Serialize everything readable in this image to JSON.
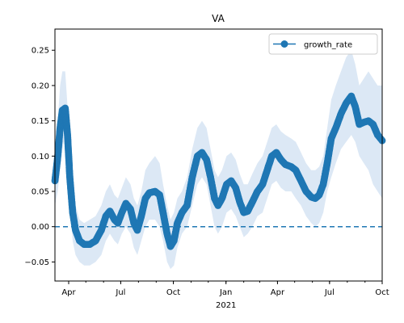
{
  "chart_data": {
    "type": "line",
    "title": "VA",
    "xlabel": "",
    "ylabel": "",
    "x_axis": {
      "type": "date",
      "range": [
        "2020-03-08",
        "2021-10-01"
      ],
      "ticks": [
        {
          "date": "2020-04-01",
          "label": "Apr"
        },
        {
          "date": "2020-07-01",
          "label": "Jul"
        },
        {
          "date": "2020-10-01",
          "label": "Oct"
        },
        {
          "date": "2021-01-01",
          "label": "Jan"
        },
        {
          "date": "2021-04-01",
          "label": "Apr"
        },
        {
          "date": "2021-07-01",
          "label": "Jul"
        },
        {
          "date": "2021-10-01",
          "label": "Oct"
        }
      ],
      "year_label": {
        "date": "2021-01-01",
        "label": "2021"
      }
    },
    "y_axis": {
      "range": [
        -0.077,
        0.28
      ],
      "ticks": [
        -0.05,
        0.0,
        0.05,
        0.1,
        0.15,
        0.2,
        0.25
      ],
      "tick_labels": [
        "−0.05",
        "0.00",
        "0.05",
        "0.10",
        "0.15",
        "0.20",
        "0.25"
      ]
    },
    "legend": {
      "placement": "top-right",
      "entries": [
        "growth_rate"
      ]
    },
    "reference_line": {
      "y": 0.0,
      "style": "dashed"
    },
    "series": [
      {
        "name": "growth_rate",
        "color": "#1f77b4",
        "band_color": "#dce8f5",
        "points": [
          {
            "x": "2020-03-08",
            "y": 0.065,
            "lo": 0.03,
            "hi": 0.1
          },
          {
            "x": "2020-03-13",
            "y": 0.1,
            "lo": 0.05,
            "hi": 0.15
          },
          {
            "x": "2020-03-17",
            "y": 0.14,
            "lo": 0.08,
            "hi": 0.2
          },
          {
            "x": "2020-03-21",
            "y": 0.165,
            "lo": 0.11,
            "hi": 0.22
          },
          {
            "x": "2020-03-26",
            "y": 0.168,
            "lo": 0.13,
            "hi": 0.22
          },
          {
            "x": "2020-03-30",
            "y": 0.13,
            "lo": 0.09,
            "hi": 0.17
          },
          {
            "x": "2020-04-03",
            "y": 0.07,
            "lo": 0.04,
            "hi": 0.11
          },
          {
            "x": "2020-04-08",
            "y": 0.02,
            "lo": -0.02,
            "hi": 0.06
          },
          {
            "x": "2020-04-13",
            "y": -0.005,
            "lo": -0.04,
            "hi": 0.03
          },
          {
            "x": "2020-04-20",
            "y": -0.02,
            "lo": -0.05,
            "hi": 0.01
          },
          {
            "x": "2020-04-28",
            "y": -0.025,
            "lo": -0.055,
            "hi": 0.005
          },
          {
            "x": "2020-05-08",
            "y": -0.025,
            "lo": -0.055,
            "hi": 0.01
          },
          {
            "x": "2020-05-18",
            "y": -0.02,
            "lo": -0.05,
            "hi": 0.015
          },
          {
            "x": "2020-05-28",
            "y": -0.005,
            "lo": -0.04,
            "hi": 0.03
          },
          {
            "x": "2020-06-05",
            "y": 0.015,
            "lo": -0.02,
            "hi": 0.05
          },
          {
            "x": "2020-06-12",
            "y": 0.022,
            "lo": -0.01,
            "hi": 0.06
          },
          {
            "x": "2020-06-20",
            "y": 0.01,
            "lo": -0.02,
            "hi": 0.045
          },
          {
            "x": "2020-06-26",
            "y": 0.005,
            "lo": -0.025,
            "hi": 0.04
          },
          {
            "x": "2020-07-03",
            "y": 0.02,
            "lo": -0.01,
            "hi": 0.055
          },
          {
            "x": "2020-07-10",
            "y": 0.033,
            "lo": 0.0,
            "hi": 0.07
          },
          {
            "x": "2020-07-18",
            "y": 0.025,
            "lo": -0.01,
            "hi": 0.06
          },
          {
            "x": "2020-07-24",
            "y": 0.005,
            "lo": -0.03,
            "hi": 0.04
          },
          {
            "x": "2020-07-30",
            "y": -0.005,
            "lo": -0.04,
            "hi": 0.03
          },
          {
            "x": "2020-08-06",
            "y": 0.015,
            "lo": -0.02,
            "hi": 0.05
          },
          {
            "x": "2020-08-13",
            "y": 0.04,
            "lo": 0.0,
            "hi": 0.08
          },
          {
            "x": "2020-08-20",
            "y": 0.048,
            "lo": 0.01,
            "hi": 0.09
          },
          {
            "x": "2020-08-30",
            "y": 0.05,
            "lo": 0.01,
            "hi": 0.1
          },
          {
            "x": "2020-09-07",
            "y": 0.045,
            "lo": 0.0,
            "hi": 0.09
          },
          {
            "x": "2020-09-13",
            "y": 0.02,
            "lo": -0.02,
            "hi": 0.06
          },
          {
            "x": "2020-09-20",
            "y": -0.01,
            "lo": -0.05,
            "hi": 0.03
          },
          {
            "x": "2020-09-26",
            "y": -0.028,
            "lo": -0.06,
            "hi": 0.01
          },
          {
            "x": "2020-10-02",
            "y": -0.02,
            "lo": -0.055,
            "hi": 0.02
          },
          {
            "x": "2020-10-08",
            "y": 0.005,
            "lo": -0.03,
            "hi": 0.04
          },
          {
            "x": "2020-10-16",
            "y": 0.02,
            "lo": -0.01,
            "hi": 0.05
          },
          {
            "x": "2020-10-25",
            "y": 0.03,
            "lo": 0.0,
            "hi": 0.07
          },
          {
            "x": "2020-11-03",
            "y": 0.07,
            "lo": 0.03,
            "hi": 0.11
          },
          {
            "x": "2020-11-12",
            "y": 0.1,
            "lo": 0.06,
            "hi": 0.14
          },
          {
            "x": "2020-11-20",
            "y": 0.105,
            "lo": 0.07,
            "hi": 0.15
          },
          {
            "x": "2020-11-28",
            "y": 0.095,
            "lo": 0.06,
            "hi": 0.14
          },
          {
            "x": "2020-12-05",
            "y": 0.07,
            "lo": 0.03,
            "hi": 0.11
          },
          {
            "x": "2020-12-12",
            "y": 0.04,
            "lo": 0.0,
            "hi": 0.08
          },
          {
            "x": "2020-12-18",
            "y": 0.03,
            "lo": -0.01,
            "hi": 0.07
          },
          {
            "x": "2020-12-25",
            "y": 0.04,
            "lo": 0.0,
            "hi": 0.08
          },
          {
            "x": "2021-01-02",
            "y": 0.06,
            "lo": 0.02,
            "hi": 0.1
          },
          {
            "x": "2021-01-10",
            "y": 0.065,
            "lo": 0.025,
            "hi": 0.105
          },
          {
            "x": "2021-01-18",
            "y": 0.055,
            "lo": 0.015,
            "hi": 0.095
          },
          {
            "x": "2021-01-25",
            "y": 0.035,
            "lo": 0.0,
            "hi": 0.075
          },
          {
            "x": "2021-02-01",
            "y": 0.02,
            "lo": -0.015,
            "hi": 0.06
          },
          {
            "x": "2021-02-08",
            "y": 0.022,
            "lo": -0.01,
            "hi": 0.06
          },
          {
            "x": "2021-02-16",
            "y": 0.035,
            "lo": 0.0,
            "hi": 0.075
          },
          {
            "x": "2021-02-25",
            "y": 0.05,
            "lo": 0.015,
            "hi": 0.09
          },
          {
            "x": "2021-03-06",
            "y": 0.06,
            "lo": 0.02,
            "hi": 0.1
          },
          {
            "x": "2021-03-14",
            "y": 0.08,
            "lo": 0.04,
            "hi": 0.12
          },
          {
            "x": "2021-03-22",
            "y": 0.1,
            "lo": 0.06,
            "hi": 0.14
          },
          {
            "x": "2021-03-30",
            "y": 0.105,
            "lo": 0.065,
            "hi": 0.145
          },
          {
            "x": "2021-04-07",
            "y": 0.095,
            "lo": 0.055,
            "hi": 0.135
          },
          {
            "x": "2021-04-15",
            "y": 0.088,
            "lo": 0.05,
            "hi": 0.13
          },
          {
            "x": "2021-04-25",
            "y": 0.085,
            "lo": 0.05,
            "hi": 0.125
          },
          {
            "x": "2021-05-03",
            "y": 0.08,
            "lo": 0.04,
            "hi": 0.12
          },
          {
            "x": "2021-05-12",
            "y": 0.065,
            "lo": 0.03,
            "hi": 0.105
          },
          {
            "x": "2021-05-21",
            "y": 0.05,
            "lo": 0.015,
            "hi": 0.09
          },
          {
            "x": "2021-05-30",
            "y": 0.042,
            "lo": 0.005,
            "hi": 0.08
          },
          {
            "x": "2021-06-06",
            "y": 0.04,
            "lo": 0.0,
            "hi": 0.08
          },
          {
            "x": "2021-06-13",
            "y": 0.045,
            "lo": 0.005,
            "hi": 0.085
          },
          {
            "x": "2021-06-20",
            "y": 0.06,
            "lo": 0.02,
            "hi": 0.1
          },
          {
            "x": "2021-06-27",
            "y": 0.09,
            "lo": 0.05,
            "hi": 0.14
          },
          {
            "x": "2021-07-04",
            "y": 0.125,
            "lo": 0.07,
            "hi": 0.18
          },
          {
            "x": "2021-07-12",
            "y": 0.14,
            "lo": 0.09,
            "hi": 0.2
          },
          {
            "x": "2021-07-21",
            "y": 0.16,
            "lo": 0.11,
            "hi": 0.22
          },
          {
            "x": "2021-07-30",
            "y": 0.175,
            "lo": 0.12,
            "hi": 0.24
          },
          {
            "x": "2021-08-08",
            "y": 0.185,
            "lo": 0.13,
            "hi": 0.25
          },
          {
            "x": "2021-08-15",
            "y": 0.17,
            "lo": 0.12,
            "hi": 0.23
          },
          {
            "x": "2021-08-22",
            "y": 0.145,
            "lo": 0.1,
            "hi": 0.2
          },
          {
            "x": "2021-08-30",
            "y": 0.148,
            "lo": 0.09,
            "hi": 0.21
          },
          {
            "x": "2021-09-07",
            "y": 0.15,
            "lo": 0.08,
            "hi": 0.22
          },
          {
            "x": "2021-09-15",
            "y": 0.145,
            "lo": 0.06,
            "hi": 0.21
          },
          {
            "x": "2021-09-23",
            "y": 0.13,
            "lo": 0.05,
            "hi": 0.2
          },
          {
            "x": "2021-10-01",
            "y": 0.122,
            "lo": 0.04,
            "hi": 0.2
          }
        ]
      }
    ]
  }
}
